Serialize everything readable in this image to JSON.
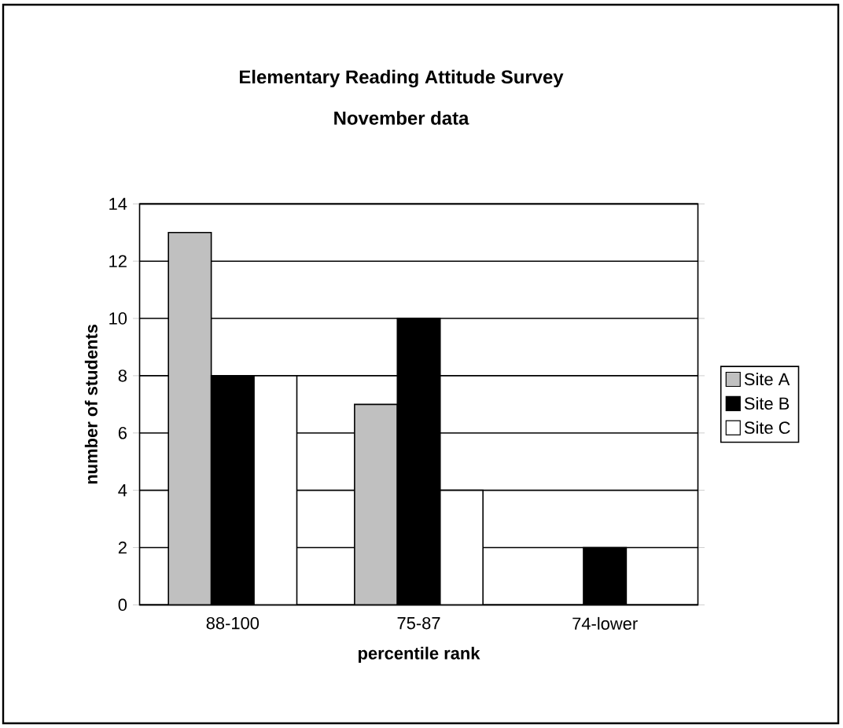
{
  "chart_data": {
    "type": "bar",
    "title": "Elementary Reading Attitude Survey",
    "subtitle": "November data",
    "xlabel": "percentile rank",
    "ylabel": "number of students",
    "categories": [
      "88-100",
      "75-87",
      "74-lower"
    ],
    "series": [
      {
        "name": "Site A",
        "color": "#c0c0c0",
        "values": [
          13,
          7,
          null
        ]
      },
      {
        "name": "Site B",
        "color": "#000000",
        "values": [
          8,
          10,
          2
        ]
      },
      {
        "name": "Site C",
        "color": "#ffffff",
        "values": [
          8,
          4,
          null
        ]
      }
    ],
    "ylim": [
      0,
      14
    ],
    "yticks": [
      0,
      2,
      4,
      6,
      8,
      10,
      12,
      14
    ],
    "grid": "y",
    "legend": "right"
  }
}
